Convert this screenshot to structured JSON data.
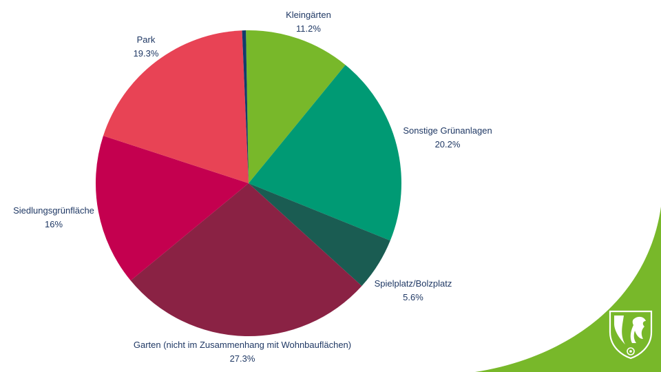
{
  "chart_data": {
    "type": "pie",
    "title": "",
    "start_angle_deg": -1,
    "slices": [
      {
        "label": "Kleingärten",
        "value_label": "11.2%",
        "value": 11.2,
        "color": "#78b82a"
      },
      {
        "label": "Sonstige Grünanlagen",
        "value_label": "20.2%",
        "value": 20.2,
        "color": "#009a74"
      },
      {
        "label": "Spielplatz/Bolzplatz",
        "value_label": "5.6%",
        "value": 5.6,
        "color": "#1a5c52"
      },
      {
        "label": "Garten (nicht im Zusammenhang mit Wohnbauflächen)",
        "value_label": "27.3%",
        "value": 27.3,
        "color": "#8a2244"
      },
      {
        "label": "Siedlungsgrünfläche",
        "value_label": "16%",
        "value": 16,
        "color": "#c4004f"
      },
      {
        "label": "Park",
        "value_label": "19.3%",
        "value": 19.3,
        "color": "#e84355"
      },
      {
        "label": "",
        "value_label": "",
        "value": 0.4,
        "color": "#123c6b"
      }
    ]
  },
  "colors": {
    "label_text": "#1f3864",
    "accent_green": "#78b82a",
    "logo_fill": "#ffffff"
  },
  "logo": {
    "icon": "nrw-coat-of-arms-icon"
  }
}
